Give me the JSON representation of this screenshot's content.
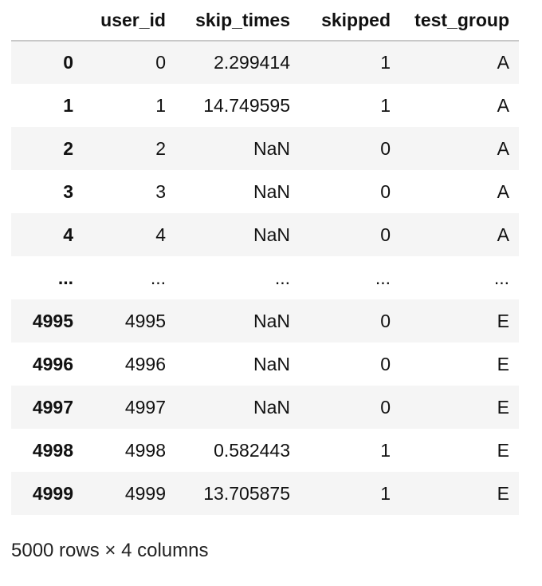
{
  "table": {
    "columns": [
      "user_id",
      "skip_times",
      "skipped",
      "test_group"
    ],
    "rows": [
      {
        "index": "0",
        "user_id": "0",
        "skip_times": "2.299414",
        "skipped": "1",
        "test_group": "A"
      },
      {
        "index": "1",
        "user_id": "1",
        "skip_times": "14.749595",
        "skipped": "1",
        "test_group": "A"
      },
      {
        "index": "2",
        "user_id": "2",
        "skip_times": "NaN",
        "skipped": "0",
        "test_group": "A"
      },
      {
        "index": "3",
        "user_id": "3",
        "skip_times": "NaN",
        "skipped": "0",
        "test_group": "A"
      },
      {
        "index": "4",
        "user_id": "4",
        "skip_times": "NaN",
        "skipped": "0",
        "test_group": "A"
      },
      {
        "index": "...",
        "user_id": "...",
        "skip_times": "...",
        "skipped": "...",
        "test_group": "..."
      },
      {
        "index": "4995",
        "user_id": "4995",
        "skip_times": "NaN",
        "skipped": "0",
        "test_group": "E"
      },
      {
        "index": "4996",
        "user_id": "4996",
        "skip_times": "NaN",
        "skipped": "0",
        "test_group": "E"
      },
      {
        "index": "4997",
        "user_id": "4997",
        "skip_times": "NaN",
        "skipped": "0",
        "test_group": "E"
      },
      {
        "index": "4998",
        "user_id": "4998",
        "skip_times": "0.582443",
        "skipped": "1",
        "test_group": "E"
      },
      {
        "index": "4999",
        "user_id": "4999",
        "skip_times": "13.705875",
        "skipped": "1",
        "test_group": "E"
      }
    ]
  },
  "footer": {
    "shape_text": "5000 rows × 4 columns"
  },
  "colors": {
    "stripe": "#f5f5f5",
    "header_rule": "#c8c8c8"
  }
}
